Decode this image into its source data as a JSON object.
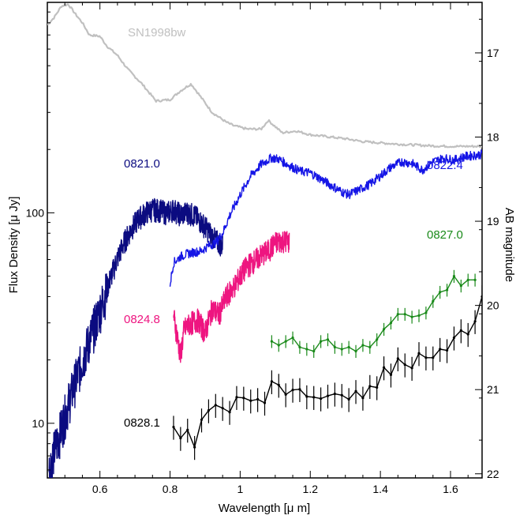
{
  "chart_data": {
    "type": "line",
    "title": "",
    "xlabel": "Wavelength [μ m]",
    "ylabel": "Flux Density [μ Jy]",
    "y2label": "AB magnitude",
    "xlim": [
      0.45,
      1.69
    ],
    "ylim": [
      5.5,
      1000
    ],
    "yscale": "log",
    "x_ticks": [
      0.6,
      0.8,
      1.0,
      1.2,
      1.4,
      1.6
    ],
    "x_tick_labels": [
      "0.6",
      "0.8",
      "1",
      "1.2",
      "1.4",
      "1.6"
    ],
    "y_ticks": [
      10,
      100
    ],
    "y_tick_labels": [
      "10",
      "100"
    ],
    "y2_ticks": [
      17,
      18,
      19,
      20,
      21,
      22
    ],
    "y2_tick_labels": [
      "17",
      "18",
      "19",
      "20",
      "21",
      "22"
    ],
    "grid": false,
    "series": [
      {
        "name": "SN1998bw",
        "color": "#c0c0c0",
        "x": [
          0.45,
          0.47,
          0.49,
          0.51,
          0.53,
          0.55,
          0.57,
          0.6,
          0.62,
          0.65,
          0.68,
          0.72,
          0.76,
          0.8,
          0.83,
          0.86,
          0.88,
          0.92,
          0.96,
          0.98,
          1.02,
          1.06,
          1.08,
          1.12,
          1.16,
          1.2,
          1.25,
          1.3,
          1.35,
          1.4,
          1.45,
          1.5,
          1.55,
          1.6,
          1.65,
          1.69
        ],
        "y": [
          780,
          850,
          960,
          980,
          880,
          800,
          700,
          690,
          620,
          560,
          480,
          410,
          340,
          345,
          380,
          410,
          370,
          300,
          270,
          260,
          250,
          250,
          275,
          240,
          245,
          235,
          230,
          225,
          218,
          215,
          212,
          210,
          208,
          207,
          207,
          207
        ]
      },
      {
        "name": "0821.0",
        "color": "#0b0b80",
        "x": [
          0.455,
          0.47,
          0.49,
          0.51,
          0.53,
          0.55,
          0.57,
          0.59,
          0.61,
          0.63,
          0.65,
          0.67,
          0.69,
          0.71,
          0.73,
          0.75,
          0.77,
          0.79,
          0.81,
          0.83,
          0.85,
          0.87,
          0.89,
          0.91,
          0.93,
          0.95
        ],
        "y": [
          6,
          7.5,
          9.5,
          12.5,
          16,
          20,
          25,
          31,
          39,
          49,
          61,
          73,
          84,
          94,
          100,
          104,
          103,
          100,
          104,
          98,
          101,
          97,
          90,
          82,
          74,
          70
        ]
      },
      {
        "name": "0822.4",
        "color": "#1515e6",
        "x": [
          0.8,
          0.81,
          0.83,
          0.85,
          0.87,
          0.89,
          0.91,
          0.93,
          0.95,
          0.97,
          1.0,
          1.03,
          1.06,
          1.09,
          1.11,
          1.14,
          1.17,
          1.2,
          1.23,
          1.26,
          1.29,
          1.31,
          1.34,
          1.37,
          1.4,
          1.43,
          1.46,
          1.49,
          1.52,
          1.55,
          1.58,
          1.61,
          1.64,
          1.67,
          1.69
        ],
        "y": [
          46,
          58,
          62,
          64,
          65,
          66,
          70,
          72,
          80,
          97,
          122,
          150,
          170,
          183,
          180,
          168,
          158,
          155,
          145,
          135,
          126,
          122,
          129,
          137,
          150,
          165,
          175,
          172,
          160,
          175,
          182,
          178,
          185,
          188,
          190
        ]
      },
      {
        "name": "0824.8",
        "color": "#ee1580",
        "x": [
          0.81,
          0.82,
          0.83,
          0.84,
          0.86,
          0.88,
          0.9,
          0.92,
          0.94,
          0.96,
          0.98,
          1.0,
          1.02,
          1.04,
          1.06,
          1.08,
          1.1,
          1.12,
          1.14
        ],
        "y": [
          33,
          26,
          21,
          28,
          30,
          31,
          27,
          35,
          33,
          40,
          44,
          50,
          56,
          59,
          63,
          66,
          72,
          74,
          73
        ]
      },
      {
        "name": "0827.0",
        "color": "#1a8a1a",
        "x": [
          1.09,
          1.11,
          1.13,
          1.15,
          1.17,
          1.19,
          1.21,
          1.23,
          1.25,
          1.27,
          1.29,
          1.31,
          1.33,
          1.35,
          1.37,
          1.39,
          1.41,
          1.43,
          1.45,
          1.47,
          1.49,
          1.51,
          1.53,
          1.55,
          1.57,
          1.59,
          1.61,
          1.63,
          1.65,
          1.67
        ],
        "y": [
          24.5,
          23.5,
          24.5,
          25.5,
          23,
          22.5,
          22,
          24.5,
          25,
          23,
          22.5,
          23,
          22,
          23.5,
          23,
          25,
          28,
          30,
          33,
          33,
          32,
          32.5,
          33.5,
          38,
          42,
          43,
          50,
          45,
          48,
          48
        ]
      },
      {
        "name": "0828.1",
        "color": "#000000",
        "x": [
          0.81,
          0.83,
          0.85,
          0.87,
          0.89,
          0.91,
          0.93,
          0.95,
          0.97,
          0.99,
          1.01,
          1.03,
          1.05,
          1.07,
          1.09,
          1.11,
          1.13,
          1.15,
          1.17,
          1.19,
          1.21,
          1.23,
          1.25,
          1.27,
          1.29,
          1.31,
          1.33,
          1.35,
          1.37,
          1.39,
          1.41,
          1.43,
          1.45,
          1.47,
          1.49,
          1.51,
          1.53,
          1.55,
          1.57,
          1.59,
          1.61,
          1.63,
          1.65,
          1.67,
          1.69
        ],
        "y": [
          9.6,
          8.5,
          9.3,
          7.7,
          10.4,
          11.5,
          12.2,
          11.8,
          11.3,
          13.3,
          13.2,
          12.8,
          13.0,
          12.5,
          15.8,
          15.2,
          13.7,
          14.4,
          14.5,
          13.4,
          13.3,
          13.1,
          13.5,
          13.8,
          13.6,
          13.0,
          14.2,
          13.2,
          15.0,
          14.8,
          18.4,
          17.0,
          20.3,
          19.0,
          18.3,
          21.5,
          20.5,
          20.5,
          22.5,
          22.2,
          25.5,
          27.6,
          26.5,
          30.5,
          40
        ]
      }
    ],
    "annotations": [
      {
        "text": "SN1998bw",
        "series": "SN1998bw",
        "color": "#c0c0c0"
      },
      {
        "text": "0821.0",
        "series": "0821.0",
        "color": "#0b0b80"
      },
      {
        "text": "0822.4",
        "series": "0822.4",
        "color": "#1515e6"
      },
      {
        "text": "0824.8",
        "series": "0824.8",
        "color": "#ee1580"
      },
      {
        "text": "0827.0",
        "series": "0827.0",
        "color": "#1a8a1a"
      },
      {
        "text": "0828.1",
        "series": "0828.1",
        "color": "#000000"
      }
    ]
  }
}
